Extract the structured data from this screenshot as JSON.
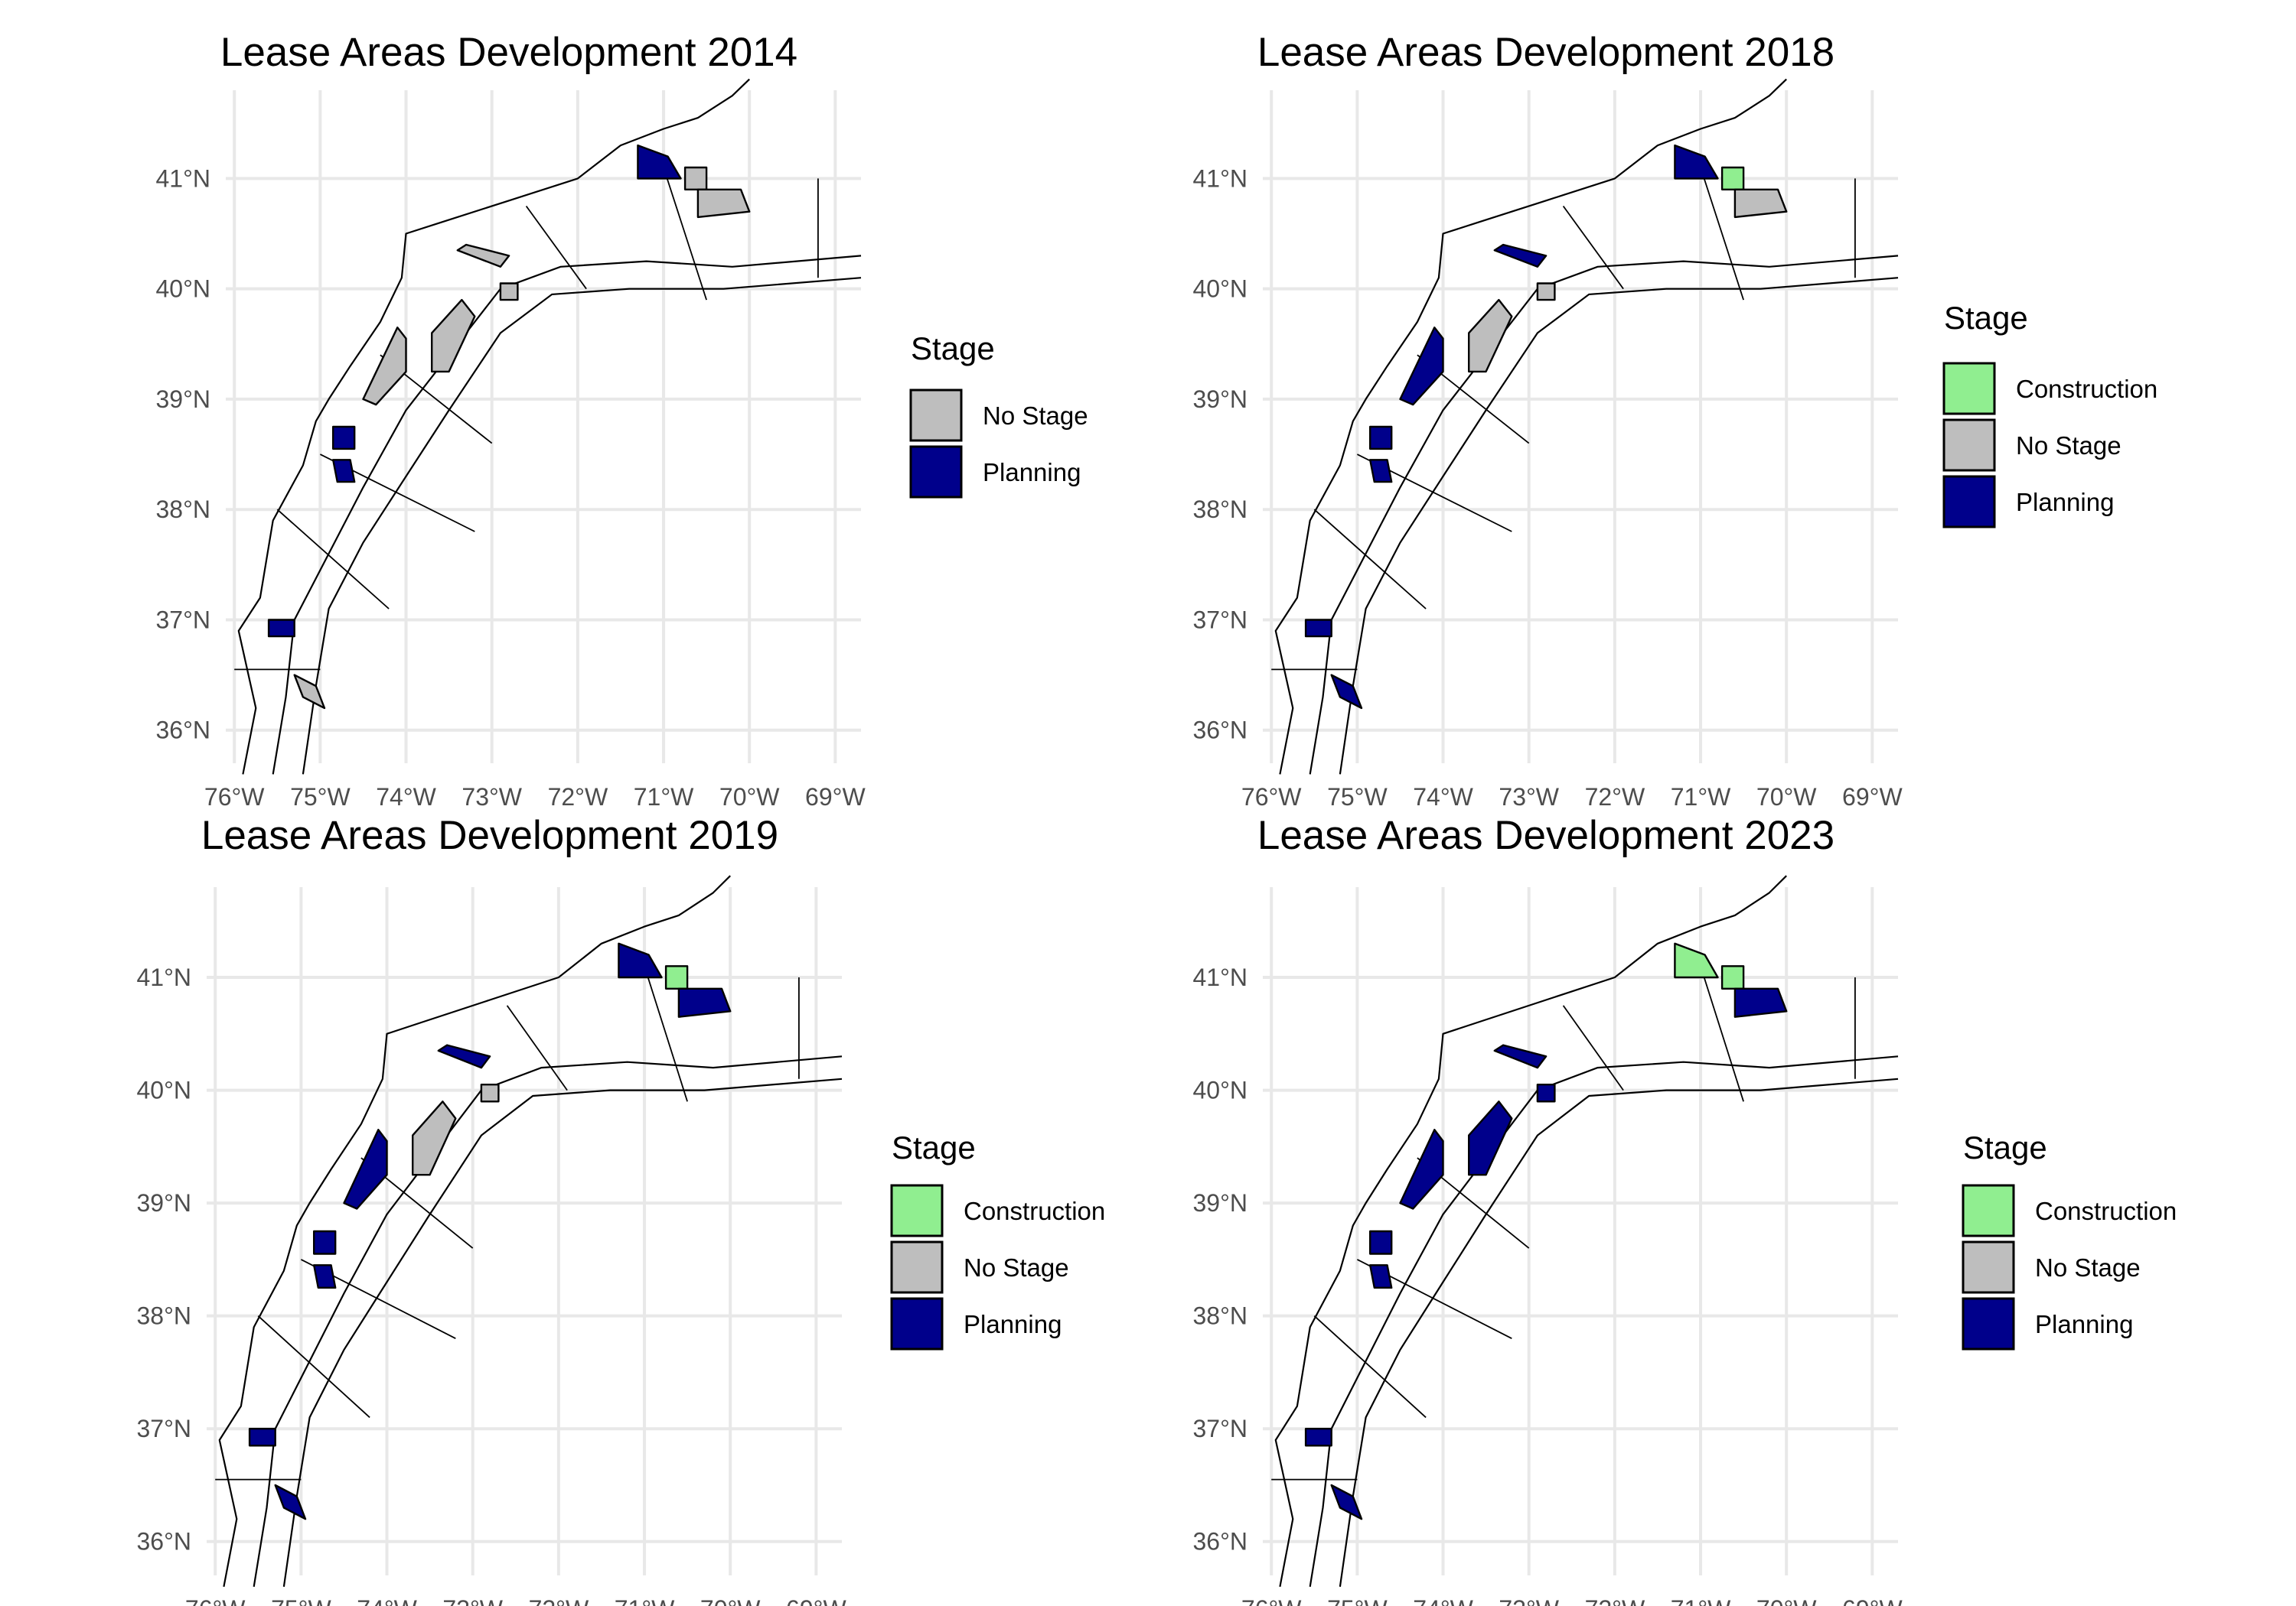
{
  "legend_title": "Stage",
  "stages": [
    {
      "name": "Construction",
      "color": "#90EE90"
    },
    {
      "name": "No Stage",
      "color": "#BEBEBE"
    },
    {
      "name": "Planning",
      "color": "#00008B"
    }
  ],
  "lon_ticks": [
    "76°W",
    "75°W",
    "74°W",
    "73°W",
    "72°W",
    "71°W",
    "70°W",
    "69°W"
  ],
  "lat_ticks": [
    "41°N",
    "40°N",
    "39°N",
    "38°N",
    "37°N",
    "36°N"
  ],
  "panels": [
    {
      "title": "Lease Areas Development 2014",
      "legend": [
        "No Stage",
        "Planning"
      ],
      "areas": {
        "ny_a": "No Stage",
        "ny_b": "No Stage",
        "nj_north": "No Stage",
        "nj_south": "No Stage",
        "de": "Planning",
        "md": "Planning",
        "va": "Planning",
        "nc": "No Stage",
        "ri_west": "Planning",
        "ri_east": "No Stage",
        "ma": "No Stage"
      }
    },
    {
      "title": "Lease Areas Development 2018",
      "legend": [
        "Construction",
        "No Stage",
        "Planning"
      ],
      "areas": {
        "ny_a": "Planning",
        "ny_b": "No Stage",
        "nj_north": "No Stage",
        "nj_south": "Planning",
        "de": "Planning",
        "md": "Planning",
        "va": "Planning",
        "nc": "Planning",
        "ri_west": "Planning",
        "ri_east": "Construction",
        "ma": "No Stage"
      }
    },
    {
      "title": "Lease Areas Development 2019",
      "legend": [
        "Construction",
        "No Stage",
        "Planning"
      ],
      "areas": {
        "ny_a": "Planning",
        "ny_b": "No Stage",
        "nj_north": "No Stage",
        "nj_south": "Planning",
        "de": "Planning",
        "md": "Planning",
        "va": "Planning",
        "nc": "Planning",
        "ri_west": "Planning",
        "ri_east": "Construction",
        "ma": "Planning"
      }
    },
    {
      "title": "Lease Areas Development 2023",
      "legend": [
        "Construction",
        "No Stage",
        "Planning"
      ],
      "areas": {
        "ny_a": "Planning",
        "ny_b": "Planning",
        "nj_north": "Planning",
        "nj_south": "Planning",
        "de": "Planning",
        "md": "Planning",
        "va": "Planning",
        "nc": "Planning",
        "ri_west": "Construction",
        "ri_east": "Construction",
        "ma": "Planning"
      }
    }
  ]
}
